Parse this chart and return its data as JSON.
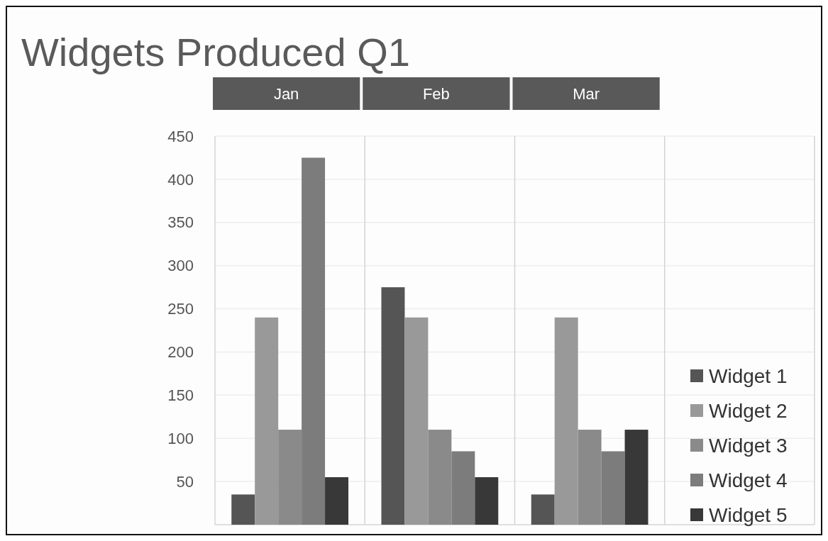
{
  "chart_data": {
    "type": "bar",
    "title": "Widgets Produced Q1",
    "categories": [
      "Jan",
      "Feb",
      "Mar",
      null
    ],
    "series": [
      {
        "name": "Widget 1",
        "color": "#555555",
        "values": [
          35,
          275,
          35,
          null
        ]
      },
      {
        "name": "Widget 2",
        "color": "#999999",
        "values": [
          240,
          240,
          240,
          null
        ]
      },
      {
        "name": "Widget 3",
        "color": "#8a8a8a",
        "values": [
          110,
          110,
          110,
          null
        ]
      },
      {
        "name": "Widget 4",
        "color": "#7c7c7c",
        "values": [
          425,
          85,
          85,
          null
        ]
      },
      {
        "name": "Widget 5",
        "color": "#383838",
        "values": [
          55,
          55,
          110,
          null
        ]
      }
    ],
    "ylim": [
      0,
      450
    ],
    "yticks": [
      50,
      100,
      150,
      200,
      250,
      300,
      350,
      400,
      450
    ],
    "grid": true,
    "legend": "bottom right"
  }
}
